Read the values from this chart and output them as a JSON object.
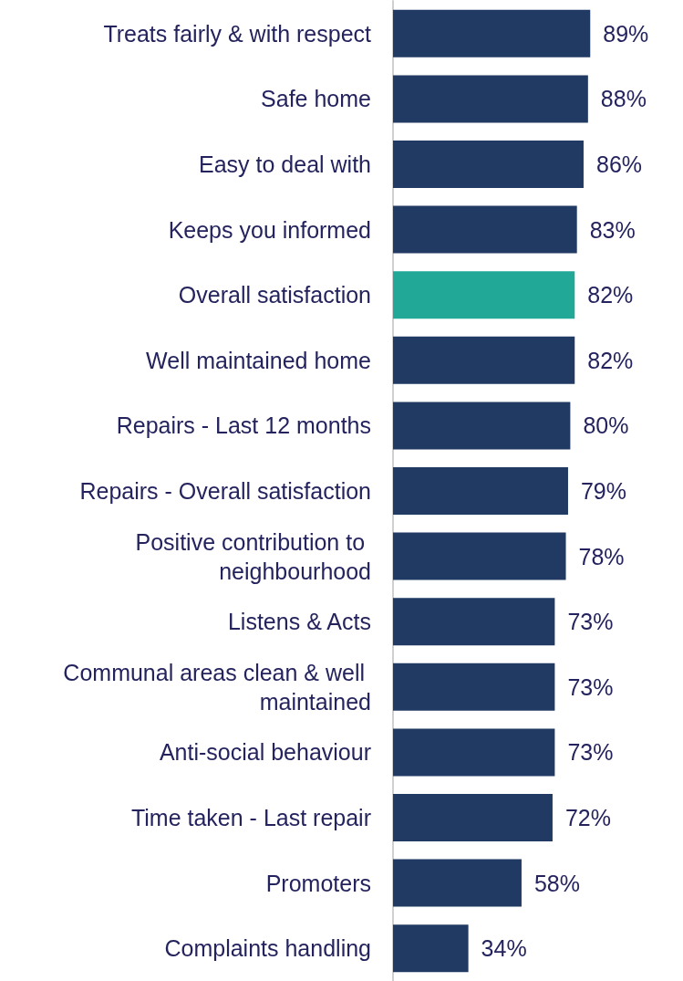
{
  "chart_data": {
    "type": "bar",
    "orientation": "horizontal",
    "categories": [
      "Treats fairly & with respect",
      "Safe home",
      "Easy to deal with",
      "Keeps you informed",
      "Overall satisfaction",
      "Well maintained home",
      "Repairs - Last 12 months",
      "Repairs - Overall satisfaction",
      "Positive contribution to neighbourhood",
      "Listens & Acts",
      "Communal areas clean & well maintained",
      "Anti-social behaviour",
      "Time taken - Last repair",
      "Promoters",
      "Complaints handling"
    ],
    "values": [
      89,
      88,
      86,
      83,
      82,
      82,
      80,
      79,
      78,
      73,
      73,
      73,
      72,
      58,
      34
    ],
    "value_labels": [
      "89%",
      "88%",
      "86%",
      "83%",
      "82%",
      "82%",
      "80%",
      "79%",
      "78%",
      "73%",
      "73%",
      "73%",
      "72%",
      "58%",
      "34%"
    ],
    "colors": [
      "#213a63",
      "#213a63",
      "#213a63",
      "#213a63",
      "#22a897",
      "#213a63",
      "#213a63",
      "#213a63",
      "#213a63",
      "#213a63",
      "#213a63",
      "#213a63",
      "#213a63",
      "#213a63",
      "#213a63"
    ]
  }
}
